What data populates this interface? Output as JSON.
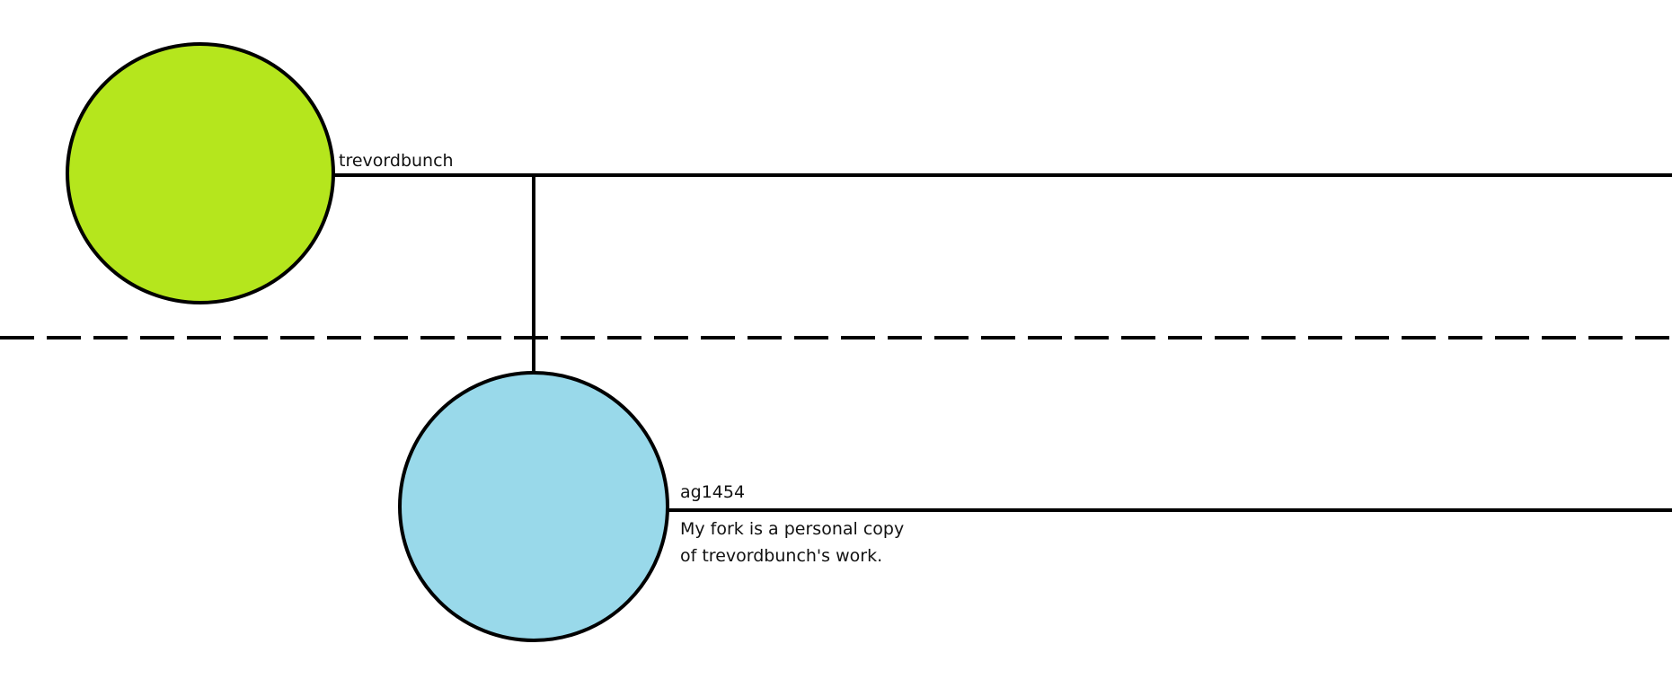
{
  "nodes": {
    "upstream": {
      "label": "trevordbunch",
      "fill": "#b5e61d"
    },
    "fork": {
      "label": "ag1454",
      "fill": "#99d9ea",
      "note_lines": [
        "My fork is a personal copy",
        "of trevordbunch's work."
      ]
    }
  },
  "colors": {
    "stroke": "#000000",
    "background": "#ffffff"
  }
}
